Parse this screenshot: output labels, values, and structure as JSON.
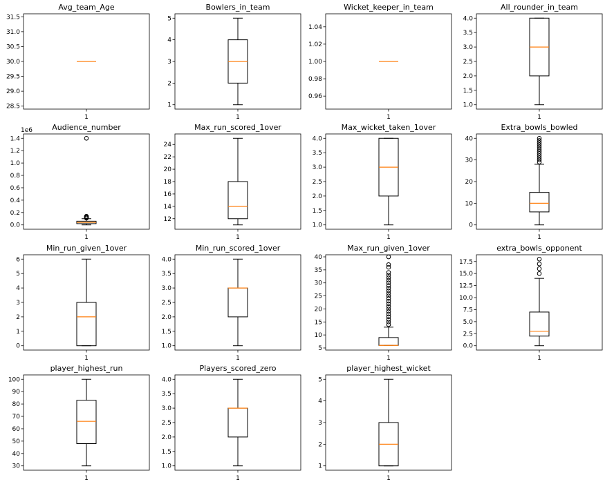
{
  "chart_data": [
    {
      "type": "box",
      "title": "Avg_team_Age",
      "xticks": [
        "1"
      ],
      "ylim": [
        28.4,
        31.6
      ],
      "yticks": [
        28.5,
        29.0,
        29.5,
        30.0,
        30.5,
        31.0,
        31.5
      ],
      "ytick_decimals": 1,
      "box": {
        "whisker_low": 30,
        "q1": 30,
        "median": 30,
        "q3": 30,
        "whisker_high": 30
      },
      "outliers": []
    },
    {
      "type": "box",
      "title": "Bowlers_in_team",
      "xticks": [
        "1"
      ],
      "ylim": [
        0.8,
        5.2
      ],
      "yticks": [
        1,
        2,
        3,
        4,
        5
      ],
      "ytick_decimals": 0,
      "box": {
        "whisker_low": 1,
        "q1": 2,
        "median": 3,
        "q3": 4,
        "whisker_high": 5
      },
      "outliers": []
    },
    {
      "type": "box",
      "title": "Wicket_keeper_in_team",
      "xticks": [
        "1"
      ],
      "ylim": [
        0.945,
        1.055
      ],
      "yticks": [
        0.96,
        0.98,
        1.0,
        1.02,
        1.04
      ],
      "ytick_decimals": 2,
      "box": {
        "whisker_low": 1,
        "q1": 1,
        "median": 1,
        "q3": 1,
        "whisker_high": 1
      },
      "outliers": []
    },
    {
      "type": "box",
      "title": "All_rounder_in_team",
      "xticks": [
        "1"
      ],
      "ylim": [
        0.85,
        4.15
      ],
      "yticks": [
        1.0,
        1.5,
        2.0,
        2.5,
        3.0,
        3.5,
        4.0
      ],
      "ytick_decimals": 1,
      "box": {
        "whisker_low": 1,
        "q1": 2,
        "median": 3,
        "q3": 4,
        "whisker_high": 4
      },
      "outliers": []
    },
    {
      "type": "box",
      "title": "Audience_number",
      "xticks": [
        "1"
      ],
      "ylim": [
        -0.07,
        1.47
      ],
      "yticks": [
        0.0,
        0.2,
        0.4,
        0.6,
        0.8,
        1.0,
        1.2,
        1.4
      ],
      "ytick_decimals": 1,
      "offset_label": "1e6",
      "box": {
        "whisker_low": 0.0,
        "q1": 0.02,
        "median": 0.04,
        "q3": 0.06,
        "whisker_high": 0.1
      },
      "outliers": [
        0.11,
        0.12,
        0.13,
        0.14,
        1.4
      ]
    },
    {
      "type": "box",
      "title": "Max_run_scored_1over",
      "xticks": [
        "1"
      ],
      "ylim": [
        10.3,
        25.7
      ],
      "yticks": [
        12,
        14,
        16,
        18,
        20,
        22,
        24
      ],
      "ytick_decimals": 0,
      "box": {
        "whisker_low": 11,
        "q1": 12,
        "median": 14,
        "q3": 18,
        "whisker_high": 25
      },
      "outliers": []
    },
    {
      "type": "box",
      "title": "Max_wicket_taken_1over",
      "xticks": [
        "1"
      ],
      "ylim": [
        0.85,
        4.15
      ],
      "yticks": [
        1.0,
        1.5,
        2.0,
        2.5,
        3.0,
        3.5,
        4.0
      ],
      "ytick_decimals": 1,
      "box": {
        "whisker_low": 1,
        "q1": 2,
        "median": 3,
        "q3": 4,
        "whisker_high": 4
      },
      "outliers": []
    },
    {
      "type": "box",
      "title": "Extra_bowls_bowled",
      "xticks": [
        "1"
      ],
      "ylim": [
        -2,
        42
      ],
      "yticks": [
        0,
        10,
        20,
        30,
        40
      ],
      "ytick_decimals": 0,
      "box": {
        "whisker_low": 0,
        "q1": 6,
        "median": 10,
        "q3": 15,
        "whisker_high": 28
      },
      "outliers": [
        29,
        30,
        31,
        32,
        33,
        34,
        35,
        36,
        37,
        38,
        39,
        40
      ]
    },
    {
      "type": "box",
      "title": "Min_run_given_1over",
      "xticks": [
        "1"
      ],
      "ylim": [
        -0.3,
        6.3
      ],
      "yticks": [
        0,
        1,
        2,
        3,
        4,
        5,
        6
      ],
      "ytick_decimals": 0,
      "box": {
        "whisker_low": 0,
        "q1": 0,
        "median": 2,
        "q3": 3,
        "whisker_high": 6
      },
      "outliers": []
    },
    {
      "type": "box",
      "title": "Min_run_scored_1over",
      "xticks": [
        "1"
      ],
      "ylim": [
        0.85,
        4.15
      ],
      "yticks": [
        1.0,
        1.5,
        2.0,
        2.5,
        3.0,
        3.5,
        4.0
      ],
      "ytick_decimals": 1,
      "box": {
        "whisker_low": 1,
        "q1": 2,
        "median": 3,
        "q3": 3,
        "whisker_high": 4
      },
      "outliers": []
    },
    {
      "type": "box",
      "title": "Max_run_given_1over",
      "xticks": [
        "1"
      ],
      "ylim": [
        4.2,
        40.8
      ],
      "yticks": [
        5,
        10,
        15,
        20,
        25,
        30,
        35,
        40
      ],
      "ytick_decimals": 0,
      "box": {
        "whisker_low": 6,
        "q1": 6,
        "median": 6,
        "q3": 9,
        "whisker_high": 13
      },
      "outliers": [
        14,
        15,
        16,
        17,
        18,
        19,
        20,
        21,
        22,
        23,
        24,
        25,
        26,
        27,
        28,
        29,
        30,
        31,
        32,
        33,
        34,
        36,
        37,
        40
      ]
    },
    {
      "type": "box",
      "title": "extra_bowls_opponent",
      "xticks": [
        "1"
      ],
      "ylim": [
        -0.9,
        18.9
      ],
      "yticks": [
        0.0,
        2.5,
        5.0,
        7.5,
        10.0,
        12.5,
        15.0,
        17.5
      ],
      "ytick_decimals": 1,
      "box": {
        "whisker_low": 0,
        "q1": 2,
        "median": 3,
        "q3": 7,
        "whisker_high": 14
      },
      "outliers": [
        15,
        16,
        17,
        18
      ]
    },
    {
      "type": "box",
      "title": "player_highest_run",
      "xticks": [
        "1"
      ],
      "ylim": [
        26.5,
        103.5
      ],
      "yticks": [
        30,
        40,
        50,
        60,
        70,
        80,
        90,
        100
      ],
      "ytick_decimals": 0,
      "box": {
        "whisker_low": 30,
        "q1": 48,
        "median": 66,
        "q3": 83,
        "whisker_high": 100
      },
      "outliers": []
    },
    {
      "type": "box",
      "title": "Players_scored_zero",
      "xticks": [
        "1"
      ],
      "ylim": [
        0.85,
        4.15
      ],
      "yticks": [
        1.0,
        1.5,
        2.0,
        2.5,
        3.0,
        3.5,
        4.0
      ],
      "ytick_decimals": 1,
      "box": {
        "whisker_low": 1,
        "q1": 2,
        "median": 3,
        "q3": 3,
        "whisker_high": 4
      },
      "outliers": []
    },
    {
      "type": "box",
      "title": "player_highest_wicket",
      "xticks": [
        "1"
      ],
      "ylim": [
        0.8,
        5.2
      ],
      "yticks": [
        1,
        2,
        3,
        4,
        5
      ],
      "ytick_decimals": 0,
      "box": {
        "whisker_low": 1,
        "q1": 1,
        "median": 2,
        "q3": 3,
        "whisker_high": 5
      },
      "outliers": []
    }
  ],
  "colors": {
    "median": "#ff7f0e",
    "box": "#000000",
    "outlier_edge": "#000000",
    "background": "#ffffff"
  }
}
